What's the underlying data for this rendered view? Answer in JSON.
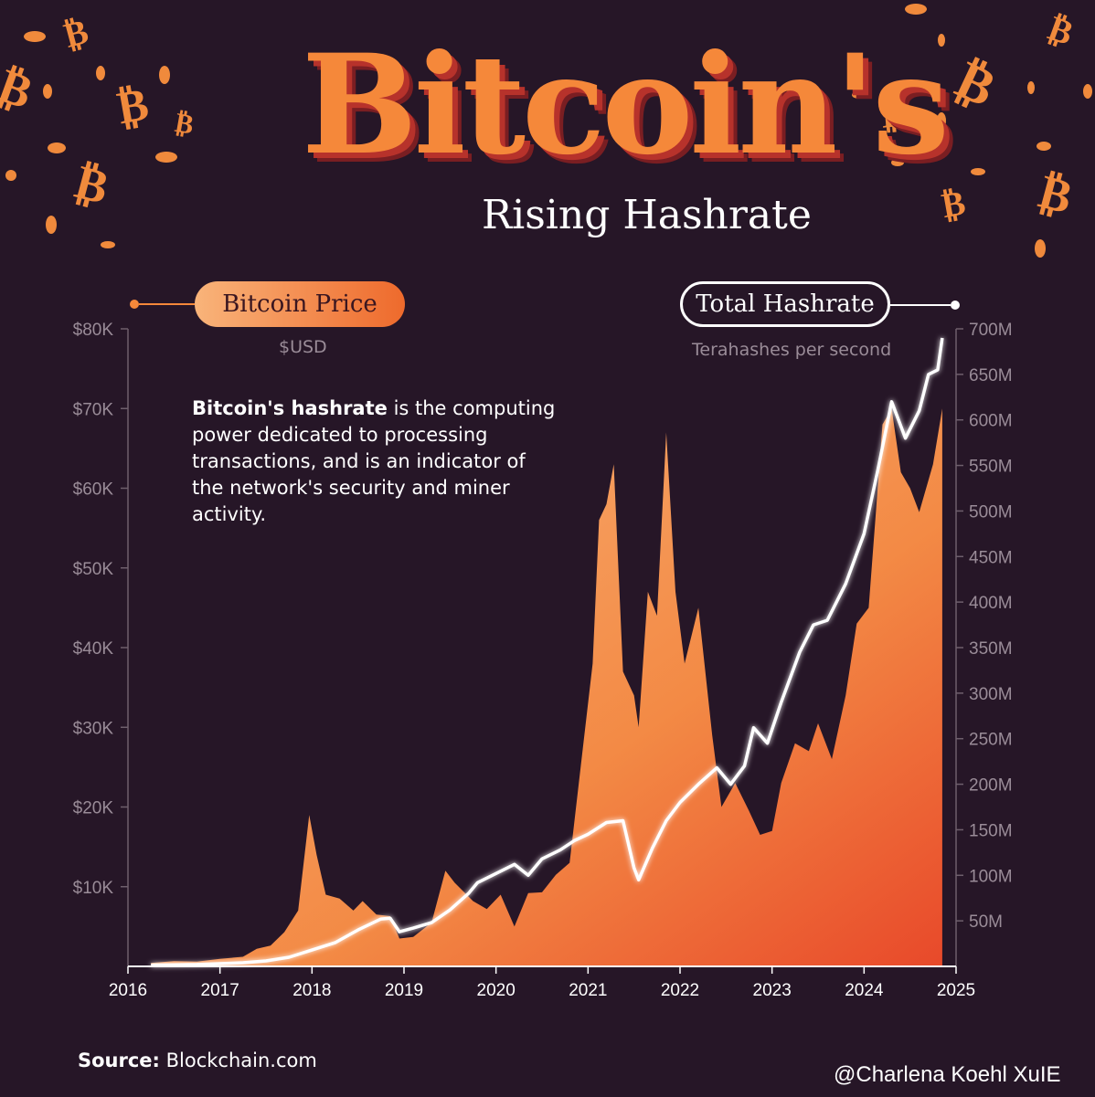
{
  "header": {
    "title": "Bitcoin's",
    "subtitle": "Rising Hashrate"
  },
  "legend": {
    "price_label": "Bitcoin Price",
    "price_unit": "$USD",
    "hash_label": "Total Hashrate",
    "hash_unit": "Terahashes per second"
  },
  "description": {
    "bold": "Bitcoin's hashrate",
    "rest": " is the computing power dedicated to processing transactions, and is an indicator of the network's security and miner activity."
  },
  "footer": {
    "source_label": "Source:",
    "source_value": "Blockchain.com",
    "watermark": "@Charlena Koehl XuIE"
  },
  "colors": {
    "background": "#261627",
    "price_area_top": "#f9b47a",
    "price_area_bottom": "#e8492a",
    "hash_line": "#ffffff",
    "axis_text": "#9a8c98"
  },
  "chart_data": {
    "type": "area",
    "title": "Bitcoin's Rising Hashrate",
    "xlabel": "",
    "x_ticks": [
      "2016",
      "2017",
      "2018",
      "2019",
      "2020",
      "2021",
      "2022",
      "2023",
      "2024",
      "2025"
    ],
    "xlim": [
      2016,
      2025
    ],
    "y_left": {
      "label": "Bitcoin Price",
      "unit": "$USD",
      "lim": [
        0,
        80000
      ],
      "ticks": [
        "$10K",
        "$20K",
        "$30K",
        "$40K",
        "$50K",
        "$60K",
        "$70K",
        "$80K"
      ]
    },
    "y_right": {
      "label": "Total Hashrate",
      "unit": "Terahashes per second",
      "lim": [
        0,
        700
      ],
      "ticks": [
        "50M",
        "100M",
        "150M",
        "200M",
        "250M",
        "300M",
        "350M",
        "400M",
        "450M",
        "500M",
        "550M",
        "600M",
        "650M",
        "700M"
      ]
    },
    "grid": false,
    "series": [
      {
        "name": "Bitcoin Price",
        "kind": "area",
        "axis": "left",
        "points": [
          [
            2016.25,
            420
          ],
          [
            2016.5,
            650
          ],
          [
            2016.75,
            610
          ],
          [
            2017.0,
            950
          ],
          [
            2017.25,
            1200
          ],
          [
            2017.4,
            2200
          ],
          [
            2017.55,
            2600
          ],
          [
            2017.7,
            4300
          ],
          [
            2017.85,
            7000
          ],
          [
            2017.97,
            19000
          ],
          [
            2018.05,
            14000
          ],
          [
            2018.15,
            9000
          ],
          [
            2018.3,
            8500
          ],
          [
            2018.45,
            7000
          ],
          [
            2018.55,
            8200
          ],
          [
            2018.7,
            6500
          ],
          [
            2018.85,
            6300
          ],
          [
            2018.95,
            3500
          ],
          [
            2019.1,
            3700
          ],
          [
            2019.3,
            5500
          ],
          [
            2019.45,
            12000
          ],
          [
            2019.55,
            10500
          ],
          [
            2019.75,
            8200
          ],
          [
            2019.9,
            7200
          ],
          [
            2020.05,
            9000
          ],
          [
            2020.2,
            5000
          ],
          [
            2020.35,
            9200
          ],
          [
            2020.5,
            9300
          ],
          [
            2020.65,
            11500
          ],
          [
            2020.8,
            13000
          ],
          [
            2020.95,
            28000
          ],
          [
            2021.05,
            38000
          ],
          [
            2021.12,
            56000
          ],
          [
            2021.2,
            58000
          ],
          [
            2021.28,
            63000
          ],
          [
            2021.38,
            37000
          ],
          [
            2021.5,
            34000
          ],
          [
            2021.55,
            30000
          ],
          [
            2021.65,
            47000
          ],
          [
            2021.75,
            44000
          ],
          [
            2021.85,
            67000
          ],
          [
            2021.95,
            47000
          ],
          [
            2022.05,
            38000
          ],
          [
            2022.2,
            45000
          ],
          [
            2022.35,
            29000
          ],
          [
            2022.45,
            20000
          ],
          [
            2022.6,
            23000
          ],
          [
            2022.75,
            19500
          ],
          [
            2022.87,
            16500
          ],
          [
            2023.0,
            17000
          ],
          [
            2023.1,
            23000
          ],
          [
            2023.25,
            28000
          ],
          [
            2023.4,
            27000
          ],
          [
            2023.5,
            30500
          ],
          [
            2023.65,
            26000
          ],
          [
            2023.8,
            34000
          ],
          [
            2023.92,
            43000
          ],
          [
            2024.05,
            45000
          ],
          [
            2024.2,
            68000
          ],
          [
            2024.3,
            70000
          ],
          [
            2024.4,
            62000
          ],
          [
            2024.5,
            60000
          ],
          [
            2024.6,
            57000
          ],
          [
            2024.75,
            63000
          ],
          [
            2024.85,
            70000
          ]
        ]
      },
      {
        "name": "Total Hashrate",
        "kind": "line",
        "axis": "right",
        "points": [
          [
            2016.25,
            1.5
          ],
          [
            2016.5,
            1.8
          ],
          [
            2016.75,
            2.1
          ],
          [
            2017.0,
            3
          ],
          [
            2017.25,
            4
          ],
          [
            2017.5,
            6
          ],
          [
            2017.75,
            10
          ],
          [
            2018.0,
            18
          ],
          [
            2018.25,
            26
          ],
          [
            2018.5,
            40
          ],
          [
            2018.75,
            52
          ],
          [
            2018.85,
            53
          ],
          [
            2018.95,
            38
          ],
          [
            2019.1,
            42
          ],
          [
            2019.3,
            48
          ],
          [
            2019.5,
            62
          ],
          [
            2019.7,
            80
          ],
          [
            2019.8,
            92
          ],
          [
            2020.0,
            102
          ],
          [
            2020.2,
            112
          ],
          [
            2020.35,
            100
          ],
          [
            2020.5,
            118
          ],
          [
            2020.7,
            128
          ],
          [
            2020.85,
            138
          ],
          [
            2021.0,
            145
          ],
          [
            2021.2,
            158
          ],
          [
            2021.38,
            160
          ],
          [
            2021.5,
            108
          ],
          [
            2021.55,
            95
          ],
          [
            2021.7,
            130
          ],
          [
            2021.85,
            160
          ],
          [
            2022.0,
            180
          ],
          [
            2022.2,
            200
          ],
          [
            2022.4,
            218
          ],
          [
            2022.55,
            200
          ],
          [
            2022.7,
            220
          ],
          [
            2022.8,
            262
          ],
          [
            2022.95,
            245
          ],
          [
            2023.1,
            290
          ],
          [
            2023.3,
            345
          ],
          [
            2023.45,
            375
          ],
          [
            2023.6,
            380
          ],
          [
            2023.8,
            420
          ],
          [
            2024.0,
            475
          ],
          [
            2024.15,
            545
          ],
          [
            2024.3,
            620
          ],
          [
            2024.45,
            580
          ],
          [
            2024.6,
            610
          ],
          [
            2024.7,
            650
          ],
          [
            2024.8,
            655
          ],
          [
            2024.85,
            690
          ]
        ]
      }
    ]
  }
}
